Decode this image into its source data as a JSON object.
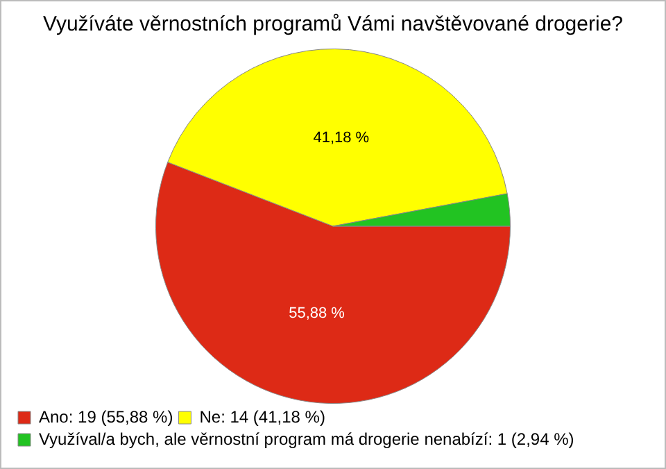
{
  "chart_data": {
    "type": "pie",
    "title": "Využíváte věrnostních programů Vámi navštěvované drogerie?",
    "categories": [
      "Ano: 19 (55,88 %)",
      "Ne: 14 (41,18 %)",
      "Využíval/a bych, ale věrnostní program má drogerie nenabízí: 1 (2,94 %)"
    ],
    "values": [
      55.88,
      41.18,
      2.94
    ],
    "value_labels": [
      "55,88 %",
      "41,18 %",
      null
    ],
    "colors": [
      "#dd2a16",
      "#ffff00",
      "#22c322"
    ],
    "legend": "bottom left"
  }
}
